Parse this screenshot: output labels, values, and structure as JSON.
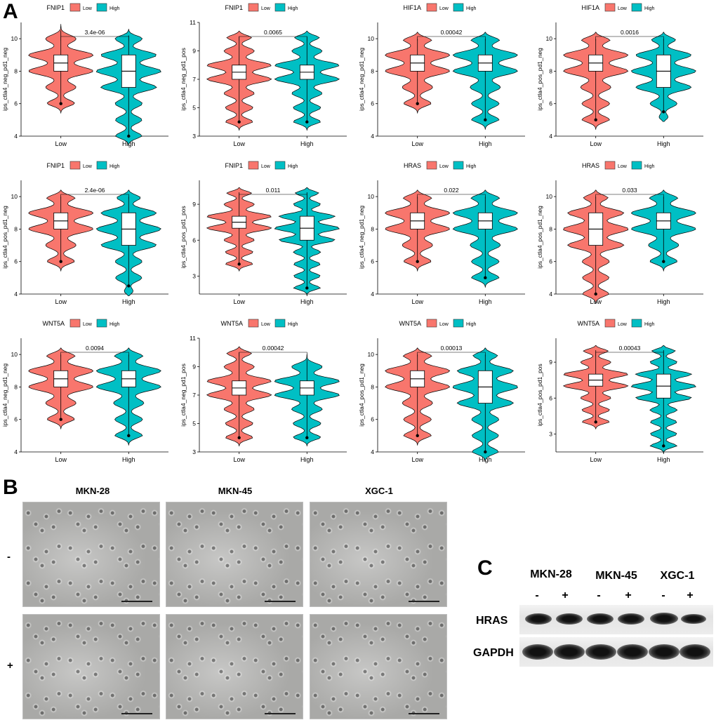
{
  "panel_letters": {
    "a": "A",
    "b": "B",
    "c": "C"
  },
  "colors": {
    "low": "#F8766D",
    "high": "#00BFC4"
  },
  "legend": {
    "low": "Low",
    "high": "High"
  },
  "chart_data": [
    {
      "type": "violin",
      "gene": "FNIP1",
      "ylabel": "ips_ctla4_neg_pd1_neg",
      "pvalue": "3.4e-06",
      "ylim": [
        4,
        11
      ],
      "yticks": [
        4,
        6,
        8,
        10
      ],
      "categories": [
        "Low",
        "High"
      ],
      "low": {
        "min": 6,
        "q1": 8,
        "median": 8.5,
        "q3": 9,
        "max": 10.5
      },
      "high": {
        "min": 4,
        "q1": 7,
        "median": 8,
        "q3": 9,
        "max": 10.2
      }
    },
    {
      "type": "violin",
      "gene": "FNIP1",
      "ylabel": "ips_ctla4_neg_pd1_pos",
      "pvalue": "0.0065",
      "ylim": [
        3,
        11
      ],
      "yticks": [
        3,
        5,
        7,
        9,
        11
      ],
      "categories": [
        "Low",
        "High"
      ],
      "low": {
        "min": 4,
        "q1": 7,
        "median": 7.5,
        "q3": 8,
        "max": 10
      },
      "high": {
        "min": 4,
        "q1": 7,
        "median": 7.5,
        "q3": 8,
        "max": 10
      }
    },
    {
      "type": "violin",
      "gene": "HIF1A",
      "ylabel": "ips_ctla4_neg_pd1_neg",
      "pvalue": "0.00042",
      "ylim": [
        4,
        11
      ],
      "yticks": [
        4,
        6,
        8,
        10
      ],
      "categories": [
        "Low",
        "High"
      ],
      "low": {
        "min": 6,
        "q1": 8,
        "median": 8.5,
        "q3": 9,
        "max": 10
      },
      "high": {
        "min": 5,
        "q1": 8,
        "median": 8.5,
        "q3": 9,
        "max": 10
      }
    },
    {
      "type": "violin",
      "gene": "HIF1A",
      "ylabel": "ips_ctla4_pos_pd1_neg",
      "pvalue": "0.0016",
      "ylim": [
        4,
        11
      ],
      "yticks": [
        4,
        6,
        8,
        10
      ],
      "categories": [
        "Low",
        "High"
      ],
      "low": {
        "min": 5,
        "q1": 8,
        "median": 8.5,
        "q3": 9,
        "max": 10
      },
      "high": {
        "min": 5.5,
        "q1": 7,
        "median": 8,
        "q3": 9,
        "max": 10
      }
    },
    {
      "type": "violin",
      "gene": "FNIP1",
      "ylabel": "ips_ctla4_pos_pd1_neg",
      "pvalue": "2.4e-06",
      "ylim": [
        4,
        11
      ],
      "yticks": [
        4,
        6,
        8,
        10
      ],
      "categories": [
        "Low",
        "High"
      ],
      "low": {
        "min": 6,
        "q1": 8,
        "median": 8.5,
        "q3": 9,
        "max": 10
      },
      "high": {
        "min": 4.5,
        "q1": 7,
        "median": 8,
        "q3": 9,
        "max": 10
      }
    },
    {
      "type": "violin",
      "gene": "FNIP1",
      "ylabel": "ips_ctla4_pos_pd1_pos",
      "pvalue": "0.011",
      "ylim": [
        1.5,
        11
      ],
      "yticks": [
        3,
        6,
        9
      ],
      "categories": [
        "Low",
        "High"
      ],
      "low": {
        "min": 4,
        "q1": 7,
        "median": 7.5,
        "q3": 8,
        "max": 10
      },
      "high": {
        "min": 2,
        "q1": 6,
        "median": 7,
        "q3": 8,
        "max": 10
      }
    },
    {
      "type": "violin",
      "gene": "HRAS",
      "ylabel": "ips_ctla4_neg_pd1_neg",
      "pvalue": "0.022",
      "ylim": [
        4,
        11
      ],
      "yticks": [
        4,
        6,
        8,
        10
      ],
      "categories": [
        "Low",
        "High"
      ],
      "low": {
        "min": 6,
        "q1": 8,
        "median": 8.5,
        "q3": 9,
        "max": 10
      },
      "high": {
        "min": 5,
        "q1": 8,
        "median": 8.5,
        "q3": 9,
        "max": 10
      }
    },
    {
      "type": "violin",
      "gene": "HRAS",
      "ylabel": "ips_ctla4_pos_pd1_neg",
      "pvalue": "0.033",
      "ylim": [
        4,
        11
      ],
      "yticks": [
        4,
        6,
        8,
        10
      ],
      "categories": [
        "Low",
        "High"
      ],
      "low": {
        "min": 4,
        "q1": 7,
        "median": 8,
        "q3": 9,
        "max": 10
      },
      "high": {
        "min": 6,
        "q1": 8,
        "median": 8.5,
        "q3": 9,
        "max": 10
      }
    },
    {
      "type": "violin",
      "gene": "WNT5A",
      "ylabel": "ips_ctla4_neg_pd1_neg",
      "pvalue": "0.0094",
      "ylim": [
        4,
        11
      ],
      "yticks": [
        4,
        6,
        8,
        10
      ],
      "categories": [
        "Low",
        "High"
      ],
      "low": {
        "min": 6,
        "q1": 8,
        "median": 8.5,
        "q3": 9,
        "max": 10
      },
      "high": {
        "min": 5,
        "q1": 8,
        "median": 8.5,
        "q3": 9,
        "max": 10
      }
    },
    {
      "type": "violin",
      "gene": "WNT5A",
      "ylabel": "ips_ctla4_neg_pd1_pos",
      "pvalue": "0.00042",
      "ylim": [
        3,
        11
      ],
      "yticks": [
        3,
        5,
        7,
        9,
        11
      ],
      "categories": [
        "Low",
        "High"
      ],
      "low": {
        "min": 4,
        "q1": 7,
        "median": 7.5,
        "q3": 8,
        "max": 10
      },
      "high": {
        "min": 4,
        "q1": 7,
        "median": 7.5,
        "q3": 8,
        "max": 9.5
      }
    },
    {
      "type": "violin",
      "gene": "WNT5A",
      "ylabel": "ips_ctla4_pos_pd1_neg",
      "pvalue": "0.00013",
      "ylim": [
        4,
        11
      ],
      "yticks": [
        4,
        6,
        8,
        10
      ],
      "categories": [
        "Low",
        "High"
      ],
      "low": {
        "min": 5,
        "q1": 8,
        "median": 8.5,
        "q3": 9,
        "max": 10
      },
      "high": {
        "min": 4,
        "q1": 7,
        "median": 8,
        "q3": 9,
        "max": 10
      }
    },
    {
      "type": "violin",
      "gene": "WNT5A",
      "ylabel": "ips_ctla4_pos_pd1_pos",
      "pvalue": "0.00043",
      "ylim": [
        1.5,
        11
      ],
      "yticks": [
        3,
        6,
        9
      ],
      "categories": [
        "Low",
        "High"
      ],
      "low": {
        "min": 4,
        "q1": 7,
        "median": 7.5,
        "q3": 8,
        "max": 10
      },
      "high": {
        "min": 2,
        "q1": 6,
        "median": 7,
        "q3": 8,
        "max": 10
      }
    }
  ],
  "panel_b": {
    "columns": [
      "MKN-28",
      "MKN-45",
      "XGC-1"
    ],
    "rows": [
      "-",
      "+"
    ]
  },
  "panel_c": {
    "columns": [
      "MKN-28",
      "MKN-45",
      "XGC-1"
    ],
    "signs": [
      "-",
      "+",
      "-",
      "+",
      "-",
      "+"
    ],
    "proteins": [
      "HRAS",
      "GAPDH"
    ]
  }
}
